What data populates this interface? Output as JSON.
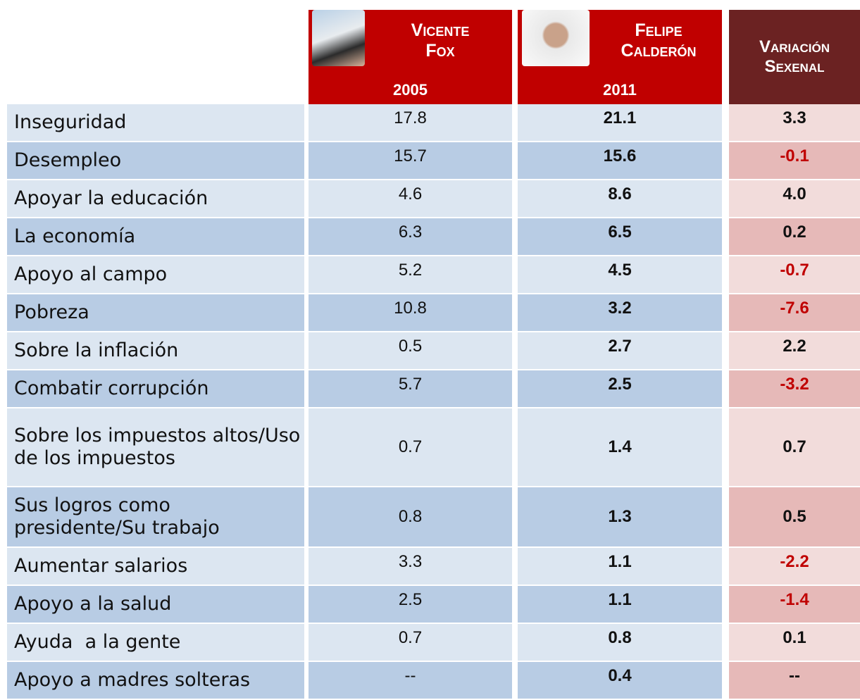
{
  "header": {
    "columns": [
      {
        "name": "Vicente Fox",
        "year": "2005"
      },
      {
        "name": "Felipe Calderón",
        "year": "2011"
      },
      {
        "name": "Variación Sexenal"
      }
    ]
  },
  "table": {
    "rows": [
      [
        "Inseguridad",
        "17.8",
        "21.1",
        "3.3"
      ],
      [
        "Desempleo",
        "15.7",
        "15.6",
        "-0.1"
      ],
      [
        "Apoyar la educación",
        "4.6",
        "8.6",
        "4.0"
      ],
      [
        "La economía",
        "6.3",
        "6.5",
        "0.2"
      ],
      [
        "Apoyo al campo",
        "5.2",
        "4.5",
        "-0.7"
      ],
      [
        "Pobreza",
        "10.8",
        "3.2",
        "-7.6"
      ],
      [
        "Sobre la inflación",
        "0.5",
        "2.7",
        "2.2"
      ],
      [
        "Combatir corrupción",
        "5.7",
        "2.5",
        "-3.2"
      ],
      [
        "Sobre los impuestos altos/Uso de los impuestos",
        "0.7",
        "1.4",
        "0.7"
      ],
      [
        "Sus logros como presidente/Su trabajo",
        "0.8",
        "1.3",
        "0.5"
      ],
      [
        "Aumentar salarios",
        "3.3",
        "1.1",
        "-2.2"
      ],
      [
        "Apoyo a la salud",
        "2.5",
        "1.1",
        "-1.4"
      ],
      [
        "Ayuda  a la gente",
        "0.7",
        "0.8",
        "0.1"
      ],
      [
        "Apoyo a madres solteras",
        "--",
        "0.4",
        "--"
      ]
    ]
  }
}
